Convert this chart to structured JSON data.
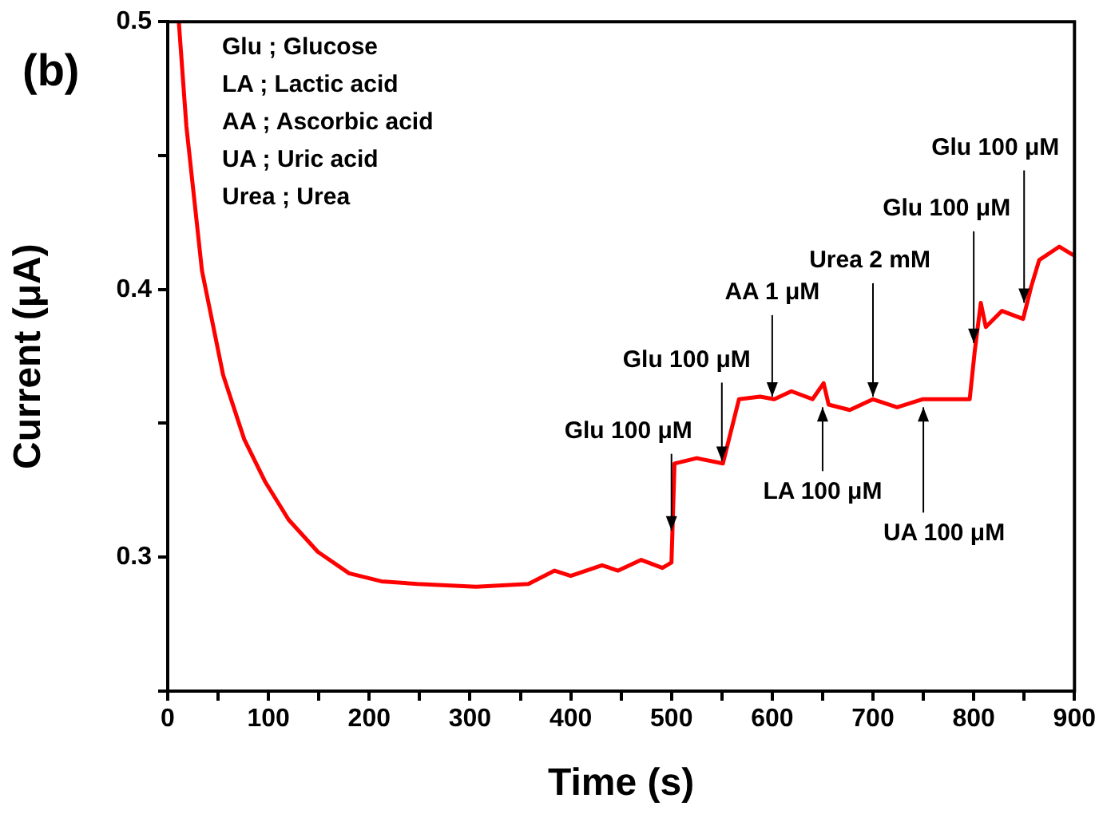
{
  "chart_data": {
    "type": "line",
    "xlabel": "Time (s)",
    "ylabel": "Current (μA)",
    "x": [
      11,
      18.5,
      34,
      55,
      76,
      97,
      120,
      149,
      180,
      212,
      248,
      306,
      358,
      384,
      400,
      431,
      447,
      470,
      491,
      500,
      503,
      525,
      551,
      567,
      588,
      602,
      619,
      640,
      651,
      656,
      677,
      700,
      724,
      749,
      796,
      801,
      807,
      812,
      828,
      849,
      857,
      865,
      885,
      898
    ],
    "series": [
      {
        "color": "#ff0000",
        "values": [
          0.5,
          0.461,
          0.407,
          0.368,
          0.344,
          0.328,
          0.314,
          0.302,
          0.294,
          0.291,
          0.29,
          0.289,
          0.29,
          0.295,
          0.293,
          0.297,
          0.295,
          0.299,
          0.296,
          0.298,
          0.335,
          0.337,
          0.335,
          0.359,
          0.36,
          0.359,
          0.362,
          0.359,
          0.365,
          0.357,
          0.355,
          0.359,
          0.356,
          0.359,
          0.359,
          0.377,
          0.395,
          0.386,
          0.392,
          0.389,
          0.401,
          0.411,
          0.416,
          0.413
        ]
      }
    ],
    "xlim": [
      0,
      900
    ],
    "ylim": [
      0.25,
      0.5
    ],
    "xticks": [
      0,
      {
        "value": 50,
        "label": null
      },
      100,
      {
        "value": 150,
        "label": null
      },
      200,
      {
        "value": 250,
        "label": null
      },
      300,
      {
        "value": 350,
        "label": null
      },
      400,
      {
        "value": 450,
        "label": null
      },
      500,
      {
        "value": 550,
        "label": null
      },
      600,
      {
        "value": 650,
        "label": null
      },
      700,
      {
        "value": 750,
        "label": null
      },
      800,
      {
        "value": 850,
        "label": null
      },
      900
    ],
    "yticks": [
      {
        "value": 0.25,
        "label": null
      },
      0.3,
      {
        "value": 0.35,
        "label": null
      },
      0.4,
      {
        "value": 0.45,
        "label": null
      },
      0.5
    ],
    "grid": false,
    "legend": false,
    "marker": "none",
    "line_style": "solid",
    "annotations": [
      "(b)",
      "Glu ; Glucose",
      "LA ; Lactic acid",
      "AA ; Ascorbic acid",
      "UA ; Uric acid",
      "Urea ; Urea",
      {
        "text": "Glu 100 μM",
        "x": 500,
        "y": 0.31
      },
      {
        "text": "Glu 100 μM",
        "x": 550,
        "y": 0.336
      },
      {
        "text": "AA 1 μM",
        "x": 600,
        "y": 0.36
      },
      {
        "text": "LA 100 μM",
        "x": 650,
        "y": 0.356
      },
      {
        "text": "Urea 2 mM",
        "x": 700,
        "y": 0.36
      },
      {
        "text": "UA 100 μM",
        "x": 750,
        "y": 0.356
      },
      {
        "text": "Glu 100 μM",
        "x": 800,
        "y": 0.38
      },
      {
        "text": "Glu 100 μM",
        "x": 850,
        "y": 0.395
      }
    ]
  }
}
